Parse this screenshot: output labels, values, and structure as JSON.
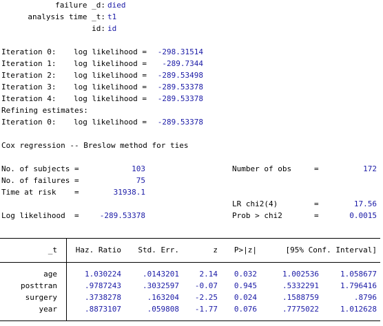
{
  "setup": [
    {
      "label": "failure _d:",
      "value": "died"
    },
    {
      "label": "analysis time _t:",
      "value": "t1"
    },
    {
      "label": "id:",
      "value": "id"
    }
  ],
  "iterations": [
    {
      "label": "Iteration 0:",
      "text": "log likelihood =",
      "value": "-298.31514"
    },
    {
      "label": "Iteration 1:",
      "text": "log likelihood =",
      "value": "-289.7344"
    },
    {
      "label": "Iteration 2:",
      "text": "log likelihood =",
      "value": "-289.53498"
    },
    {
      "label": "Iteration 3:",
      "text": "log likelihood =",
      "value": "-289.53378"
    },
    {
      "label": "Iteration 4:",
      "text": "log likelihood =",
      "value": "-289.53378"
    }
  ],
  "refining": {
    "heading": "Refining estimates:",
    "label": "Iteration 0:",
    "text": "log likelihood =",
    "value": "-289.53378"
  },
  "title": "Cox regression -- Breslow method for ties",
  "stats_left": [
    {
      "label": "No. of subjects =",
      "value": "103"
    },
    {
      "label": "No. of failures =",
      "value": "75"
    },
    {
      "label": "Time at risk    =",
      "value": "31938.1"
    }
  ],
  "loglik": {
    "label": "Log likelihood  =",
    "value": "-289.53378"
  },
  "stats_right": [
    {
      "label": "Number of obs",
      "eq": "=",
      "value": "172"
    },
    {
      "label": "LR chi2(4)",
      "eq": "=",
      "value": "17.56"
    },
    {
      "label": "Prob > chi2",
      "eq": "=",
      "value": "0.0015"
    }
  ],
  "table": {
    "headers": [
      "_t",
      "Haz. Ratio",
      "Std. Err.",
      "z",
      "P>|z|",
      "[95% Conf. Interval]"
    ],
    "rows": [
      {
        "name": "age",
        "cells": [
          "1.030224",
          ".0143201",
          "2.14",
          "0.032",
          "1.002536",
          "1.058677"
        ]
      },
      {
        "name": "posttran",
        "cells": [
          ".9787243",
          ".3032597",
          "-0.07",
          "0.945",
          ".5332291",
          "1.796416"
        ]
      },
      {
        "name": "surgery",
        "cells": [
          ".3738278",
          ".163204",
          "-2.25",
          "0.024",
          ".1588759",
          ".8796"
        ]
      },
      {
        "name": "year",
        "cells": [
          ".8873107",
          ".059808",
          "-1.77",
          "0.076",
          ".7775022",
          "1.012628"
        ]
      }
    ]
  },
  "colors": {
    "result": "#1a1aa6",
    "text": "#000000",
    "background": "#ffffff"
  }
}
